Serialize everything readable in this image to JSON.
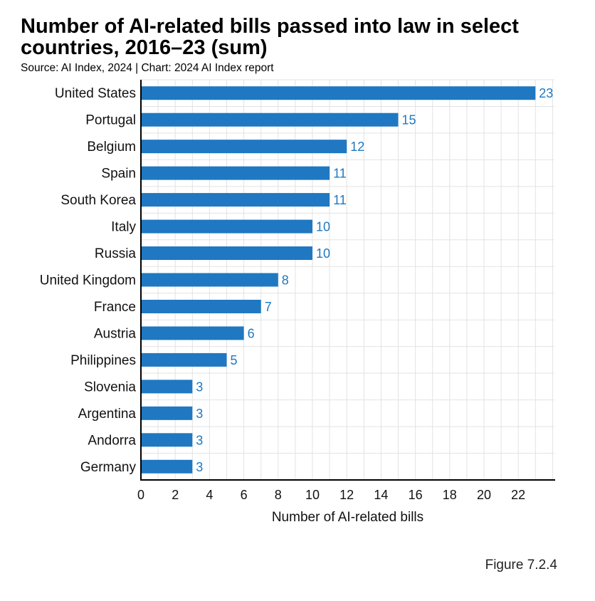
{
  "header": {
    "title": "Number of AI-related bills passed into law in select countries, 2016–23 (sum)",
    "source": "Source: AI Index, 2024 | Chart: 2024 AI Index report"
  },
  "figure_label": "Figure 7.2.4",
  "colors": {
    "bar": "#1f78c1",
    "label": "#1f78c1",
    "grid": "#e3e3e3",
    "axis": "#000000"
  },
  "chart_data": {
    "type": "bar",
    "orientation": "horizontal",
    "title": "Number of AI-related bills passed into law in select countries, 2016–23 (sum)",
    "xlabel": "Number of AI-related bills",
    "ylabel": "",
    "xlim": [
      0,
      24
    ],
    "xticks": [
      0,
      2,
      4,
      6,
      8,
      10,
      12,
      14,
      16,
      18,
      20,
      22
    ],
    "grid": true,
    "categories": [
      "United States",
      "Portugal",
      "Belgium",
      "Spain",
      "South Korea",
      "Italy",
      "Russia",
      "United Kingdom",
      "France",
      "Austria",
      "Philippines",
      "Slovenia",
      "Argentina",
      "Andorra",
      "Germany"
    ],
    "values": [
      23,
      15,
      12,
      11,
      11,
      10,
      10,
      8,
      7,
      6,
      5,
      3,
      3,
      3,
      3
    ]
  }
}
